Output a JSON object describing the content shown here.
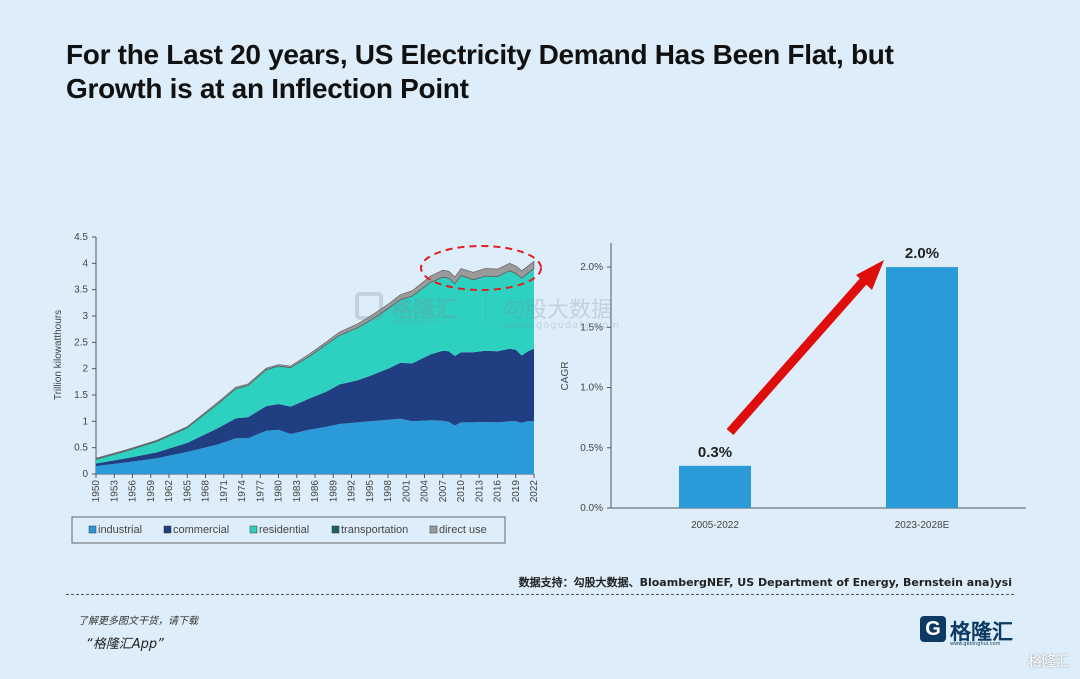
{
  "title": {
    "line1": "For the Last 20 years, US Electricity Demand Has Been Flat, but",
    "line2": "Growth is at an Inflection Point"
  },
  "source": "数据支持：勾股大数据、BloambergNEF, US Department of Energy, Bernstein ana)ysi",
  "promo": {
    "line1": "了解更多图文干货，请下载",
    "line2": "“格隆汇App”"
  },
  "brand": {
    "mark": "G",
    "name": "格隆汇",
    "url": "www.gelonghui.com"
  },
  "watermark": {
    "logo_text": "格隆汇",
    "logo_url": "www.gelonghui.com",
    "text": "勾股大数据",
    "url": "www.gogudata.com",
    "corner": "格隆汇"
  },
  "colors": {
    "industrial": "#2a9ad8",
    "commercial": "#1f3f82",
    "residential": "#2ed0bf",
    "transportation": "#1f5f5f",
    "direct_use": "#9a9a9a",
    "bar": "#2a9ad8",
    "arrow": "#e00d0d",
    "highlight": "#e02020"
  },
  "chart_data": [
    {
      "type": "area",
      "stacked": true,
      "ylabel": "Trillion kilowatthours",
      "ylim": [
        0,
        4.5
      ],
      "yticks": [
        "0",
        "0.5",
        "1",
        "1.5",
        "2",
        "2.5",
        "3",
        "3.5",
        "4",
        "4.5"
      ],
      "xlim": [
        1950,
        2022
      ],
      "xticks": [
        "1950",
        "1953",
        "1956",
        "1959",
        "1962",
        "1965",
        "1968",
        "1971",
        "1974",
        "1977",
        "1980",
        "1983",
        "1986",
        "1989",
        "1992",
        "1995",
        "1998",
        "2001",
        "2004",
        "2007",
        "2010",
        "2013",
        "2016",
        "2019",
        "2022"
      ],
      "legend_position": "bottom",
      "annotation": "dashed red ellipse around 2005-2022",
      "x": [
        1950,
        1955,
        1960,
        1965,
        1970,
        1973,
        1975,
        1978,
        1980,
        1982,
        1985,
        1988,
        1990,
        1993,
        1995,
        1998,
        2000,
        2002,
        2005,
        2007,
        2008,
        2009,
        2010,
        2012,
        2014,
        2016,
        2018,
        2019,
        2020,
        2021,
        2022
      ],
      "series": [
        {
          "name": "industrial",
          "values": [
            0.15,
            0.22,
            0.3,
            0.42,
            0.56,
            0.68,
            0.68,
            0.82,
            0.84,
            0.76,
            0.84,
            0.9,
            0.95,
            0.98,
            1.0,
            1.03,
            1.05,
            1.0,
            1.02,
            1.01,
            0.99,
            0.92,
            0.98,
            0.98,
            0.99,
            0.98,
            1.0,
            1.0,
            0.97,
            1.0,
            1.0
          ]
        },
        {
          "name": "commercial",
          "values": [
            0.05,
            0.08,
            0.11,
            0.17,
            0.31,
            0.38,
            0.4,
            0.47,
            0.49,
            0.52,
            0.59,
            0.67,
            0.75,
            0.8,
            0.86,
            0.97,
            1.06,
            1.1,
            1.25,
            1.33,
            1.34,
            1.32,
            1.33,
            1.33,
            1.35,
            1.35,
            1.38,
            1.36,
            1.28,
            1.33,
            1.38
          ]
        },
        {
          "name": "residential",
          "values": [
            0.07,
            0.13,
            0.2,
            0.28,
            0.45,
            0.55,
            0.59,
            0.68,
            0.71,
            0.73,
            0.79,
            0.89,
            0.92,
            0.99,
            1.04,
            1.13,
            1.19,
            1.27,
            1.36,
            1.39,
            1.38,
            1.36,
            1.45,
            1.37,
            1.41,
            1.41,
            1.47,
            1.44,
            1.46,
            1.47,
            1.51
          ]
        },
        {
          "name": "transportation",
          "values": [
            0.01,
            0.01,
            0.01,
            0.01,
            0.01,
            0.01,
            0.01,
            0.01,
            0.01,
            0.01,
            0.01,
            0.01,
            0.01,
            0.01,
            0.01,
            0.01,
            0.01,
            0.01,
            0.01,
            0.01,
            0.01,
            0.01,
            0.01,
            0.01,
            0.01,
            0.01,
            0.01,
            0.01,
            0.01,
            0.01,
            0.01
          ]
        },
        {
          "name": "direct use",
          "values": [
            0.02,
            0.02,
            0.02,
            0.02,
            0.03,
            0.03,
            0.03,
            0.03,
            0.03,
            0.03,
            0.04,
            0.05,
            0.06,
            0.07,
            0.08,
            0.08,
            0.09,
            0.1,
            0.12,
            0.13,
            0.13,
            0.13,
            0.13,
            0.14,
            0.14,
            0.14,
            0.14,
            0.14,
            0.14,
            0.14,
            0.14
          ]
        }
      ]
    },
    {
      "type": "bar",
      "ylabel": "CAGR",
      "ylim": [
        0,
        2.2
      ],
      "yticks": [
        "0.0%",
        "0.5%",
        "1.0%",
        "1.5%",
        "2.0%"
      ],
      "categories": [
        "2005-2022",
        "2023-2028E"
      ],
      "values": [
        0.35,
        2.0
      ],
      "data_labels": [
        "0.3%",
        "2.0%"
      ],
      "annotation": "red arrow from 0.3% bar to 2.0% bar"
    }
  ]
}
